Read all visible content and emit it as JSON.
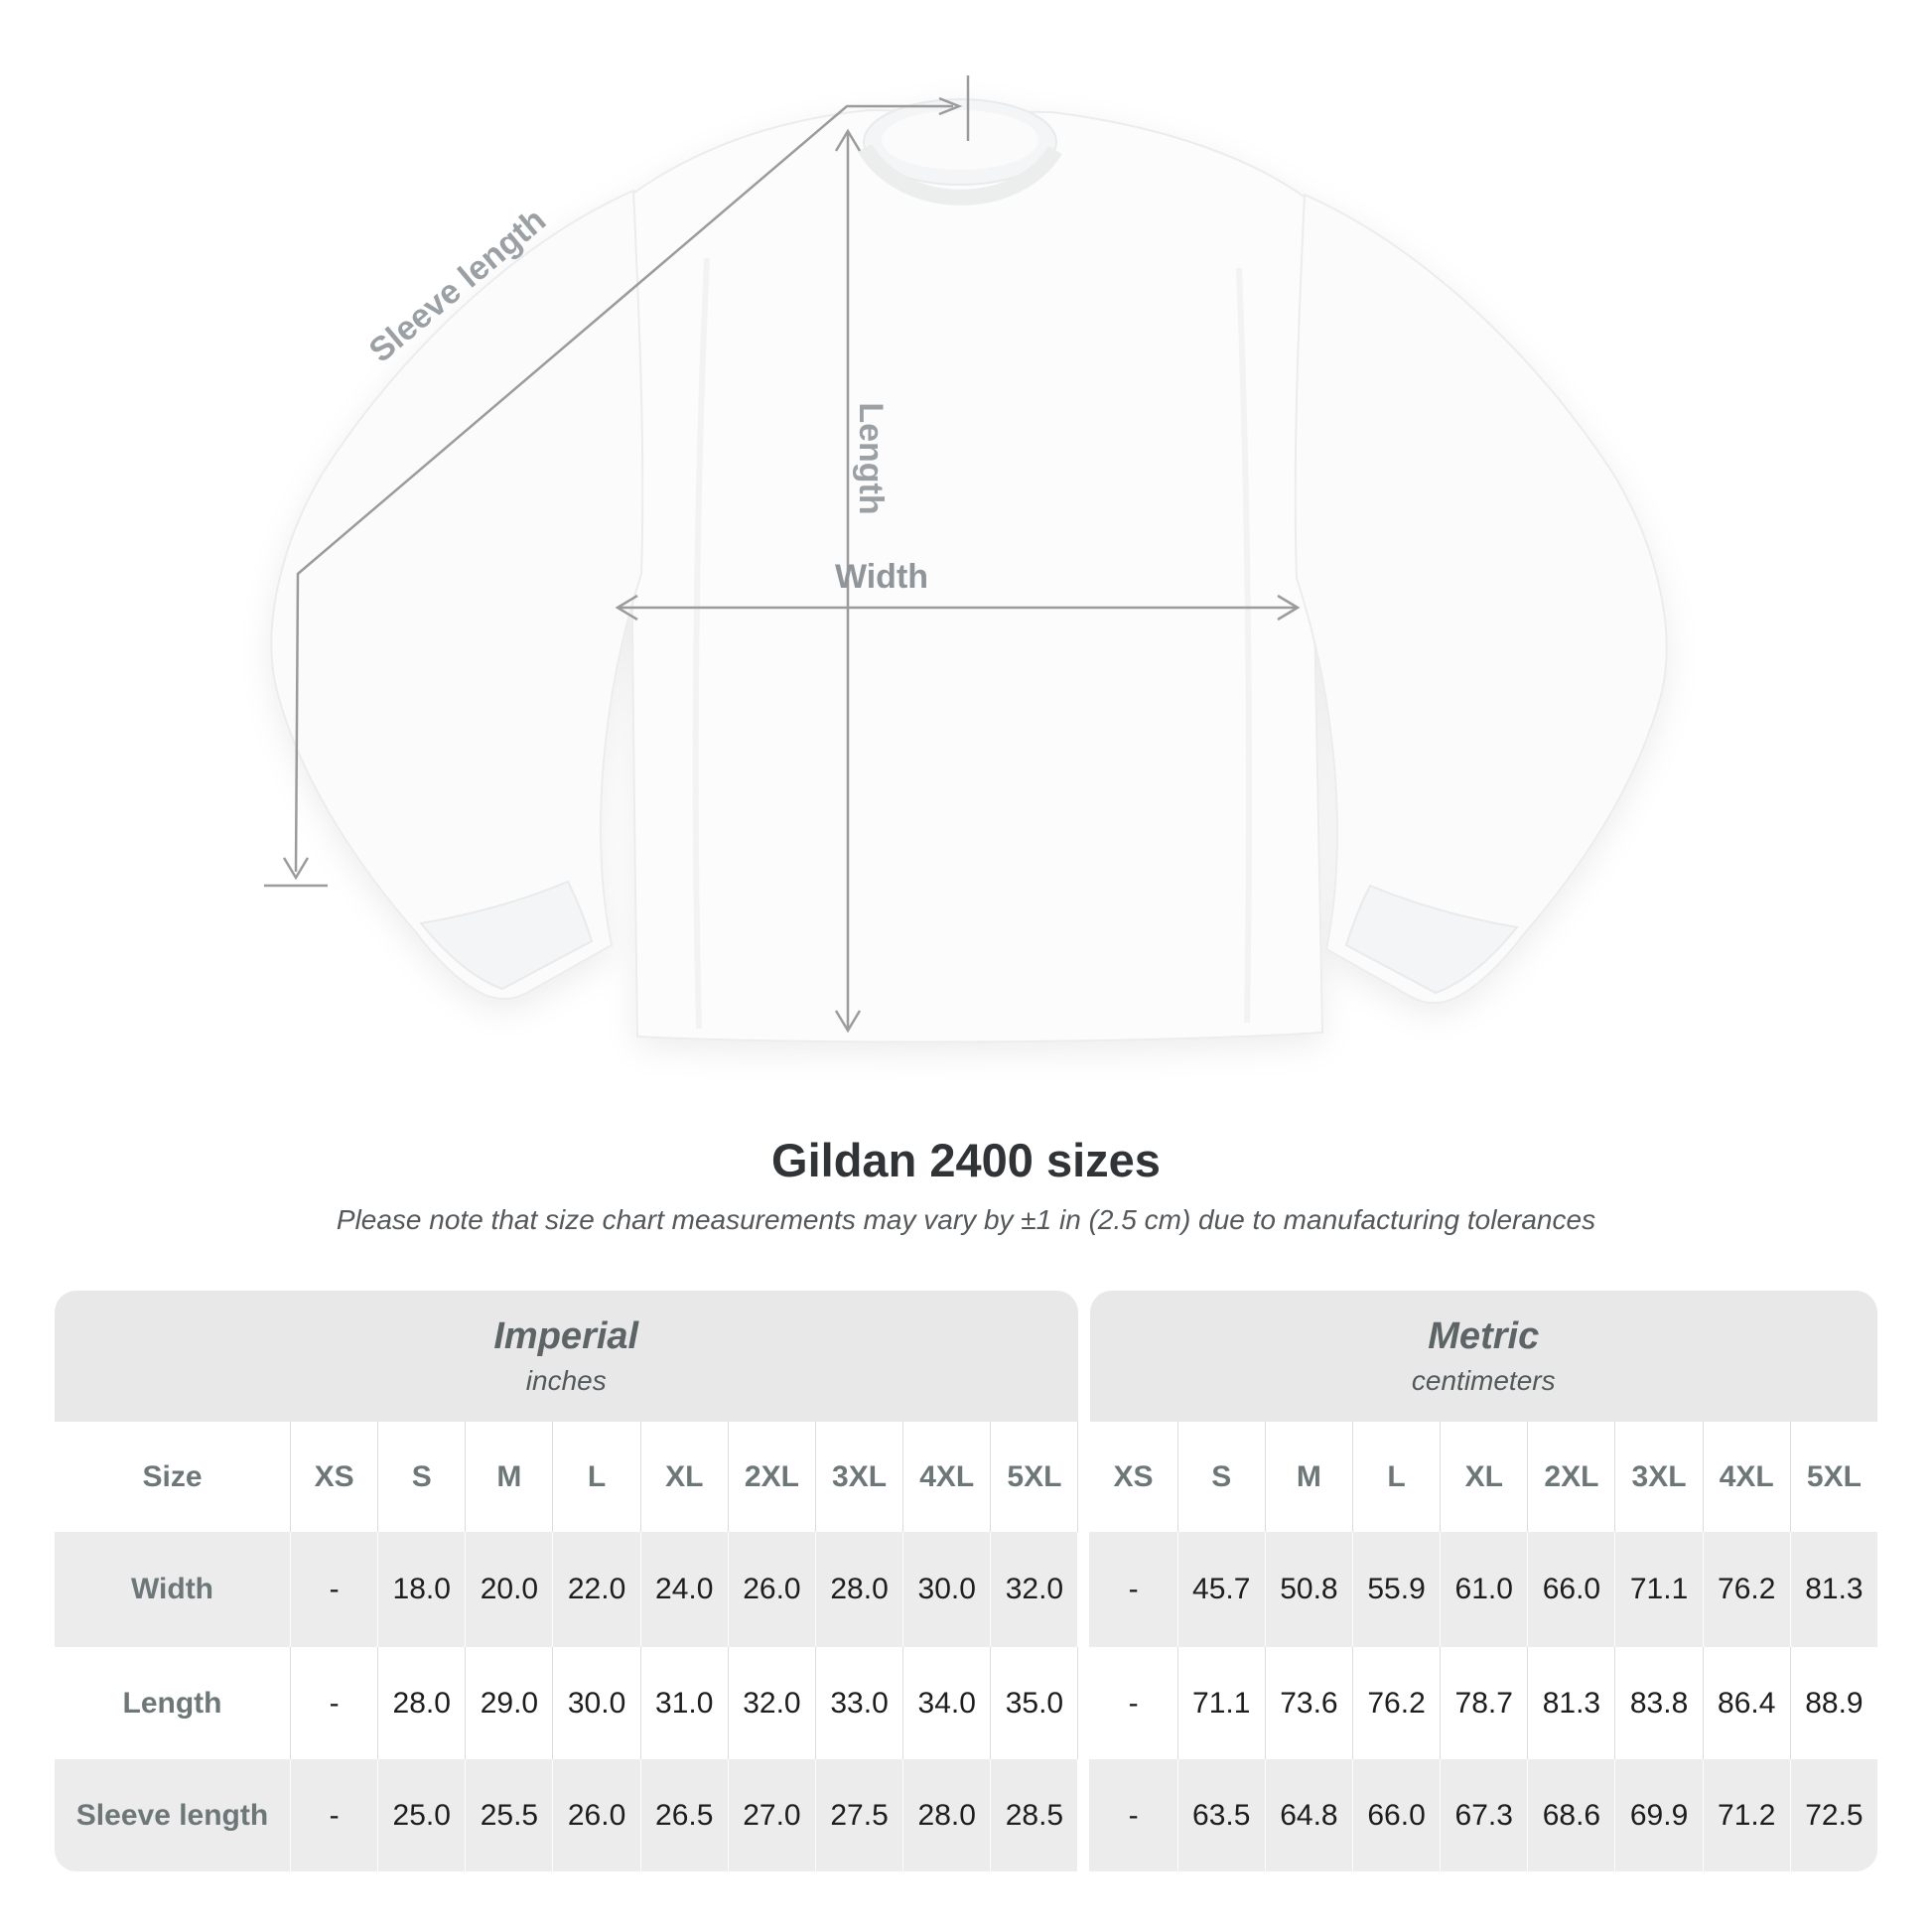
{
  "diagram": {
    "sleeve_length_label": "Sleeve length",
    "length_label": "Length",
    "width_label": "Width"
  },
  "heading": {
    "title": "Gildan 2400 sizes",
    "subtitle": "Please note that size chart measurements may vary by ±1 in (2.5 cm) due to manufacturing tolerances"
  },
  "table": {
    "corner_label": "Size",
    "unit_groups": [
      {
        "name": "Imperial",
        "unit": "inches"
      },
      {
        "name": "Metric",
        "unit": "centimeters"
      }
    ],
    "sizes": [
      "XS",
      "S",
      "M",
      "L",
      "XL",
      "2XL",
      "3XL",
      "4XL",
      "5XL"
    ],
    "rows": [
      {
        "label": "Width",
        "imperial": [
          "-",
          "18.0",
          "20.0",
          "22.0",
          "24.0",
          "26.0",
          "28.0",
          "30.0",
          "32.0"
        ],
        "metric": [
          "-",
          "45.7",
          "50.8",
          "55.9",
          "61.0",
          "66.0",
          "71.1",
          "76.2",
          "81.3"
        ]
      },
      {
        "label": "Length",
        "imperial": [
          "-",
          "28.0",
          "29.0",
          "30.0",
          "31.0",
          "32.0",
          "33.0",
          "34.0",
          "35.0"
        ],
        "metric": [
          "-",
          "71.1",
          "73.6",
          "76.2",
          "78.7",
          "81.3",
          "83.8",
          "86.4",
          "88.9"
        ]
      },
      {
        "label": "Sleeve length",
        "imperial": [
          "-",
          "25.0",
          "25.5",
          "26.0",
          "26.5",
          "27.0",
          "27.5",
          "28.0",
          "28.5"
        ],
        "metric": [
          "-",
          "63.5",
          "64.8",
          "66.0",
          "67.3",
          "68.6",
          "69.9",
          "71.2",
          "72.5"
        ]
      }
    ]
  },
  "chart_data": {
    "type": "table",
    "title": "Gildan 2400 sizes",
    "note": "Please note that size chart measurements may vary by ±1 in (2.5 cm) due to manufacturing tolerances",
    "column_groups": [
      "Imperial (inches)",
      "Metric (centimeters)"
    ],
    "columns": [
      "XS",
      "S",
      "M",
      "L",
      "XL",
      "2XL",
      "3XL",
      "4XL",
      "5XL"
    ],
    "rows": [
      {
        "measurement": "Width",
        "imperial_in": [
          null,
          18.0,
          20.0,
          22.0,
          24.0,
          26.0,
          28.0,
          30.0,
          32.0
        ],
        "metric_cm": [
          null,
          45.7,
          50.8,
          55.9,
          61.0,
          66.0,
          71.1,
          76.2,
          81.3
        ]
      },
      {
        "measurement": "Length",
        "imperial_in": [
          null,
          28.0,
          29.0,
          30.0,
          31.0,
          32.0,
          33.0,
          34.0,
          35.0
        ],
        "metric_cm": [
          null,
          71.1,
          73.6,
          76.2,
          78.7,
          81.3,
          83.8,
          86.4,
          88.9
        ]
      },
      {
        "measurement": "Sleeve length",
        "imperial_in": [
          null,
          25.0,
          25.5,
          26.0,
          26.5,
          27.0,
          27.5,
          28.0,
          28.5
        ],
        "metric_cm": [
          null,
          63.5,
          64.8,
          66.0,
          67.3,
          68.6,
          69.9,
          71.2,
          72.5
        ]
      }
    ]
  },
  "colors": {
    "measure_line": "#9b9b9b",
    "measure_label": "#9aa0a3",
    "band_bg": "#e8e8e8",
    "gray_row_bg": "#ececec",
    "header_text": "#6e7778",
    "value_text": "#1d1d1f",
    "title_text": "#303436"
  }
}
